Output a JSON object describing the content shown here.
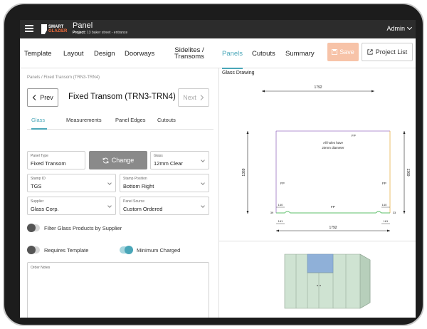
{
  "topbar": {
    "logo_line1": "SMART",
    "logo_line2": "GLAZIER",
    "title": "Panel",
    "project_label": "Project:",
    "project_value": "13 baker street - entrance",
    "user": "Admin"
  },
  "nav": {
    "tabs": [
      "Template",
      "Layout",
      "Design",
      "Doorways",
      "Sidelites / Transoms",
      "Panels",
      "Cutouts",
      "Summary"
    ],
    "active_tab": "Panels",
    "save_label": "Save",
    "project_list_label": "Project List"
  },
  "left": {
    "breadcrumb": "Panels / Fixed Transom (TRN3-TRN4)",
    "prev_label": "Prev",
    "next_label": "Next",
    "panel_title": "Fixed Transom (TRN3-TRN4)",
    "subtabs": [
      "Glass",
      "Measurements",
      "Panel Edges",
      "Cutouts"
    ],
    "active_subtab": "Glass",
    "fields": {
      "panel_type": {
        "label": "Panel Type",
        "value": "Fixed Transom"
      },
      "change_label": "Change",
      "glass": {
        "label": "Glass",
        "value": "12mm Clear"
      },
      "stamp_id": {
        "label": "Stamp ID",
        "value": "TGS"
      },
      "stamp_position": {
        "label": "Stamp Position",
        "value": "Bottom Right"
      },
      "supplier": {
        "label": "Supplier",
        "value": "Glass Corp."
      },
      "panel_source": {
        "label": "Panel Source",
        "value": "Custom Ordered"
      }
    },
    "toggles": {
      "filter_label": "Filter Glass Products by Supplier",
      "filter_on": false,
      "requires_template_label": "Requires Template",
      "requires_template_on": false,
      "minimum_charged_label": "Minimum Charged",
      "minimum_charged_on": true
    },
    "order_notes_label": "Order Notes"
  },
  "drawing": {
    "heading": "Glass Drawing",
    "width_top": "1792",
    "width_bottom": "1792",
    "height_left": "1369",
    "height_right": "1369",
    "note_line1": "All holes have",
    "note_line2": "20mm diameter",
    "fp_label": "FP",
    "cut_dim_left_top": "140",
    "cut_dim_right_top": "140",
    "cut_dim_left_small": "39",
    "cut_dim_right_small": "33",
    "cut_dim_left_bottom": "161",
    "cut_dim_right_bottom": "161",
    "colors": {
      "frame": "#9a6fc2",
      "right_edge": "#e8b24a",
      "bottom_edge": "#5cbf6a",
      "dim": "#222"
    }
  },
  "icons": {
    "menu": "hamburger-icon",
    "user_chevron": "chevron-down-icon",
    "save": "save-icon",
    "project_list": "external-link-icon",
    "prev": "chevron-left-icon",
    "next": "chevron-right-icon",
    "change": "refresh-icon"
  }
}
